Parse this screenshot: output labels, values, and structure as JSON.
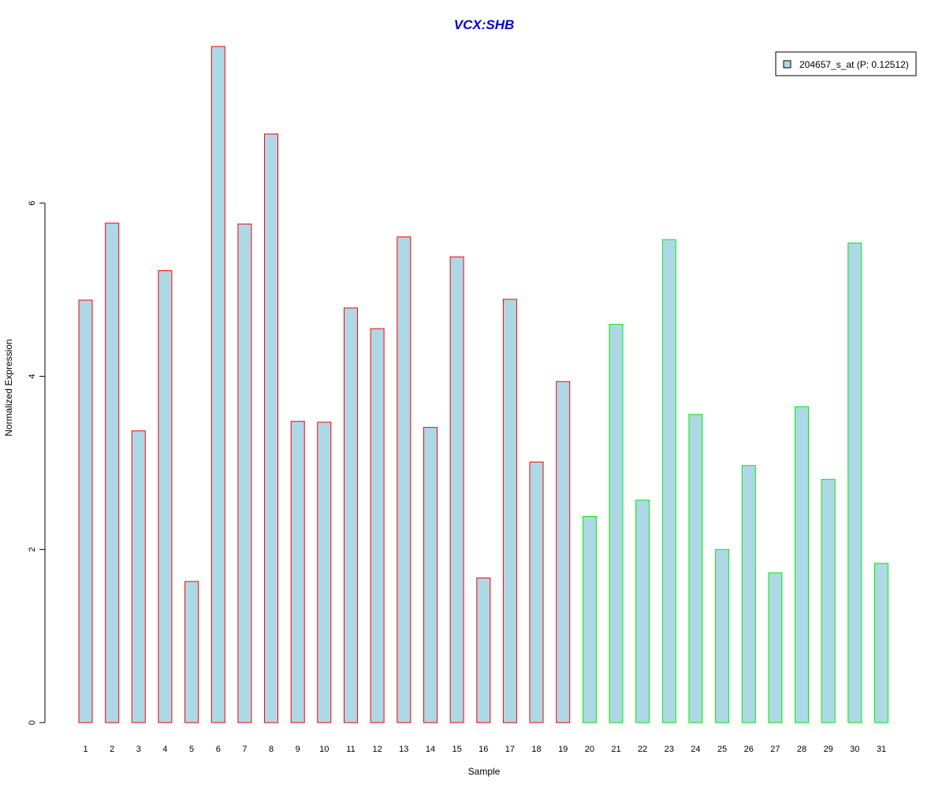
{
  "chart_data": {
    "type": "bar",
    "title": "VCX:SHB",
    "xlabel": "Sample",
    "ylabel": "Normalized Expression",
    "categories": [
      "1",
      "2",
      "3",
      "4",
      "5",
      "6",
      "7",
      "8",
      "9",
      "10",
      "11",
      "12",
      "13",
      "14",
      "15",
      "16",
      "17",
      "18",
      "19",
      "20",
      "21",
      "22",
      "23",
      "24",
      "25",
      "26",
      "27",
      "28",
      "29",
      "30",
      "31"
    ],
    "series": [
      {
        "name": "204657_s_at (P: 0.12512)",
        "values": [
          4.88,
          5.77,
          3.37,
          5.22,
          1.63,
          7.81,
          5.76,
          6.8,
          3.48,
          3.47,
          4.79,
          4.55,
          5.61,
          3.41,
          5.38,
          1.67,
          4.89,
          3.01,
          3.94,
          2.38,
          4.6,
          2.57,
          5.58,
          3.56,
          2.0,
          2.97,
          1.73,
          3.65,
          2.81,
          5.54,
          1.84
        ]
      }
    ],
    "group_sizes": [
      19,
      12
    ],
    "group_colors": [
      "#ff0000",
      "#00ee00"
    ],
    "fill_color": "#add8e6",
    "title_color": "#0000cc",
    "ylim": [
      0,
      7.81
    ],
    "yticks": [
      0,
      2,
      4,
      6
    ],
    "legend_position": "top-right",
    "grid": false
  }
}
